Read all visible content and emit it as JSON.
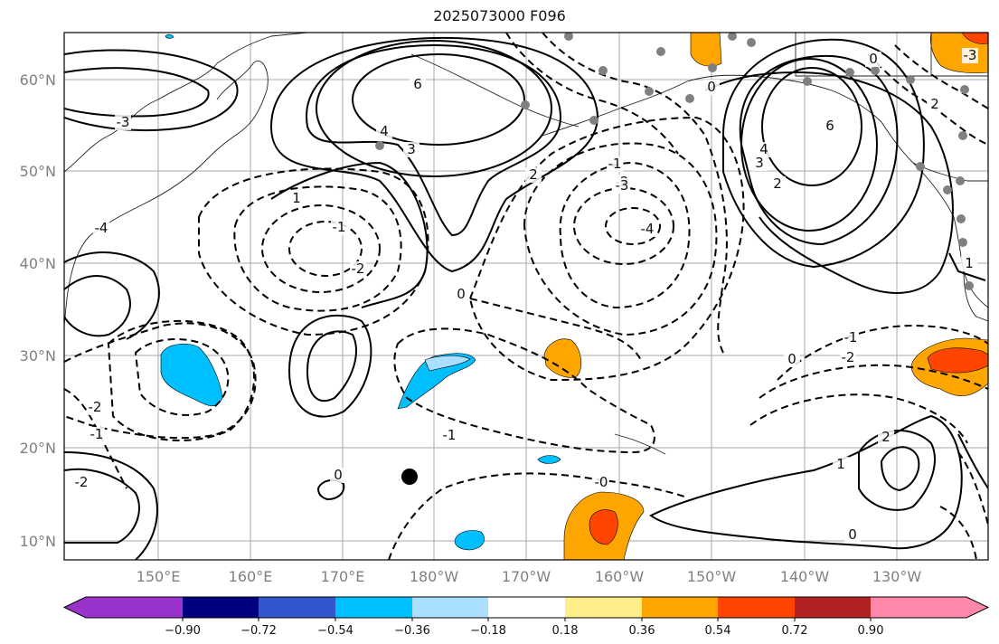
{
  "title": "2025073000 F096",
  "map": {
    "lon_ticks": [
      "150°E",
      "160°E",
      "170°E",
      "180°W",
      "170°W",
      "160°W",
      "150°W",
      "140°W",
      "130°W"
    ],
    "lat_ticks": [
      "60°N",
      "50°N",
      "40°N",
      "30°N",
      "20°N",
      "10°N"
    ]
  },
  "colorbar": {
    "levels": [
      "−0.90",
      "−0.72",
      "−0.54",
      "−0.36",
      "−0.18",
      "0.18",
      "0.36",
      "0.54",
      "0.72",
      "0.90"
    ],
    "colors": [
      "#9933cc",
      "#000080",
      "#3355cc",
      "#00bfff",
      "#aadfff",
      "#ffffff",
      "#ffee88",
      "#ffa500",
      "#ff4500",
      "#b22222",
      "#ff88aa"
    ]
  },
  "contour_labels": [
    "6",
    "4",
    "3",
    "2",
    "1",
    "0",
    "-1",
    "-2",
    "-3",
    "-4",
    "6",
    "4",
    "3",
    "2",
    "0",
    "-1",
    "-2",
    "-3",
    "-4",
    "1",
    "2",
    "0",
    "-1",
    "-2",
    "0",
    "-1",
    "-2",
    "2",
    "1",
    "0",
    "-1",
    "-2",
    "0",
    "-0",
    "-3"
  ]
}
